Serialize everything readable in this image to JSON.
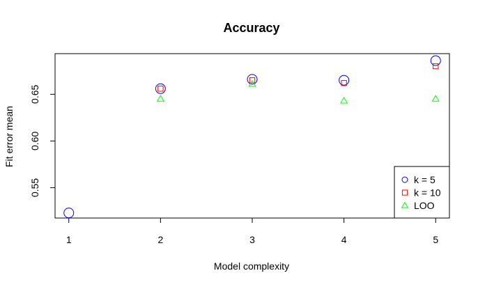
{
  "chart_data": {
    "type": "scatter",
    "title": "Accuracy",
    "xlabel": "Model complexity",
    "ylabel": "Fit error mean",
    "x": [
      1,
      2,
      3,
      4,
      5
    ],
    "xlim": [
      0.85,
      5.15
    ],
    "ylim": [
      0.5175,
      0.6935
    ],
    "xticks": [
      "1",
      "2",
      "3",
      "4",
      "5"
    ],
    "yticks": [
      {
        "value": 0.55,
        "label": "0.55"
      },
      {
        "value": 0.6,
        "label": "0.60"
      },
      {
        "value": 0.65,
        "label": "0.65"
      }
    ],
    "series": [
      {
        "name": "k = 5",
        "marker": "circle",
        "color": "#0000ff",
        "values": [
          0.523,
          0.656,
          0.666,
          0.665,
          0.686
        ]
      },
      {
        "name": "k = 10",
        "marker": "square",
        "color": "#ff0000",
        "values": [
          null,
          0.656,
          0.665,
          0.662,
          0.68
        ]
      },
      {
        "name": "LOO",
        "marker": "triangle",
        "color": "#00ff00",
        "values": [
          null,
          0.645,
          0.661,
          0.643,
          0.645
        ]
      }
    ],
    "legend_position": "bottom-right",
    "grid": false
  }
}
